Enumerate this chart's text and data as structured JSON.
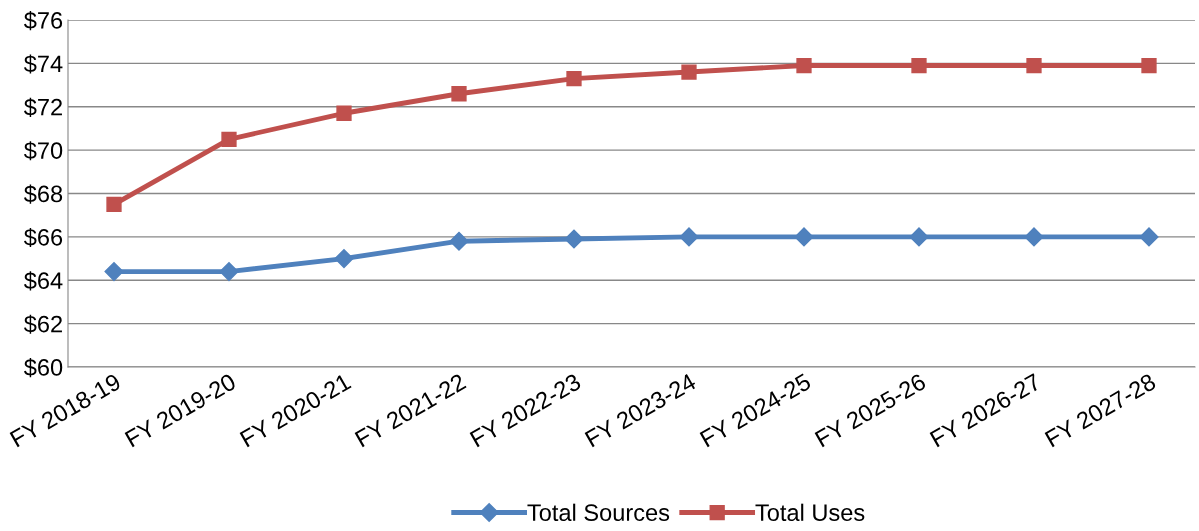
{
  "chart_data": {
    "type": "line",
    "categories": [
      "FY 2018-19",
      "FY 2019-20",
      "FY 2020-21",
      "FY 2021-22",
      "FY 2022-23",
      "FY 2023-24",
      "FY 2024-25",
      "FY 2025-26",
      "FY 2026-27",
      "FY 2027-28"
    ],
    "series": [
      {
        "name": "Total Sources",
        "color": "#4f81bd",
        "marker": "diamond",
        "values": [
          64.4,
          64.4,
          65.0,
          65.8,
          65.9,
          66.0,
          66.0,
          66.0,
          66.0,
          66.0
        ]
      },
      {
        "name": "Total Uses",
        "color": "#c0504d",
        "marker": "square",
        "values": [
          67.5,
          70.5,
          71.7,
          72.6,
          73.3,
          73.6,
          73.9,
          73.9,
          73.9,
          73.9
        ]
      }
    ],
    "ylim": [
      60,
      76
    ],
    "yticks": [
      {
        "value": 60,
        "label": "$60"
      },
      {
        "value": 62,
        "label": "$62"
      },
      {
        "value": 64,
        "label": "$64"
      },
      {
        "value": 66,
        "label": "$66"
      },
      {
        "value": 68,
        "label": "$68"
      },
      {
        "value": 70,
        "label": "$70"
      },
      {
        "value": 72,
        "label": "$72"
      },
      {
        "value": 74,
        "label": "$74"
      },
      {
        "value": 76,
        "label": "$76"
      }
    ],
    "grid": "y",
    "legend": "bottom",
    "line_style": "solid"
  }
}
